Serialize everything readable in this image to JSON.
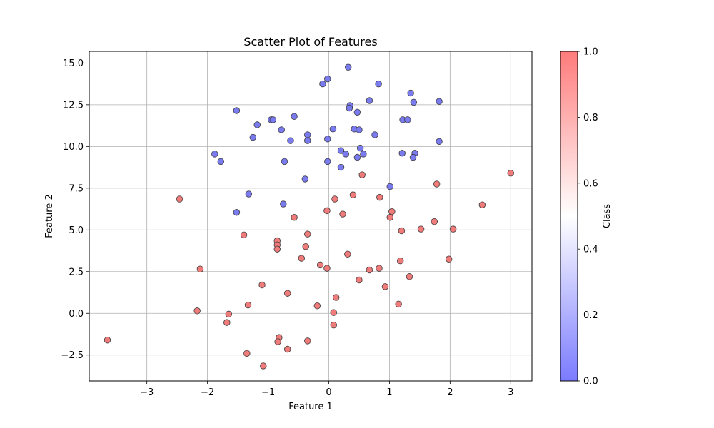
{
  "chart_data": {
    "type": "scatter",
    "title": "Scatter Plot of Features",
    "xlabel": "Feature 1",
    "ylabel": "Feature 2",
    "xlim": [
      -3.95,
      3.35
    ],
    "ylim": [
      -4.05,
      15.7
    ],
    "x_ticks": [
      -3,
      -2,
      -1,
      0,
      1,
      2,
      3
    ],
    "x_tick_labels": [
      "−3",
      "−2",
      "−1",
      "0",
      "1",
      "2",
      "3"
    ],
    "y_ticks": [
      -2.5,
      0,
      2.5,
      5,
      7.5,
      10,
      12.5,
      15
    ],
    "y_tick_labels": [
      "−2.5",
      "0.0",
      "2.5",
      "5.0",
      "7.5",
      "10.0",
      "12.5",
      "15.0"
    ],
    "grid": true,
    "colorbar": {
      "label": "Class",
      "range": [
        0,
        1
      ],
      "ticks": [
        0,
        0.2,
        0.4,
        0.6,
        0.8,
        1.0
      ],
      "tick_labels": [
        "0.0",
        "0.2",
        "0.4",
        "0.6",
        "0.8",
        "1.0"
      ],
      "color_low": "#7b7bff",
      "color_mid": "#ffffff",
      "color_high": "#ff7b7b"
    },
    "series": [
      {
        "class": 0,
        "color": "#7b7bf0",
        "points": [
          [
            0.32,
            14.75
          ],
          [
            -0.02,
            14.05
          ],
          [
            -0.1,
            13.75
          ],
          [
            0.82,
            13.75
          ],
          [
            1.35,
            13.2
          ],
          [
            0.67,
            12.75
          ],
          [
            1.82,
            12.7
          ],
          [
            1.4,
            12.65
          ],
          [
            0.35,
            12.45
          ],
          [
            0.34,
            12.3
          ],
          [
            -1.52,
            12.15
          ],
          [
            0.47,
            12.05
          ],
          [
            -0.57,
            11.8
          ],
          [
            -0.95,
            11.6
          ],
          [
            -0.92,
            11.6
          ],
          [
            1.22,
            11.6
          ],
          [
            1.3,
            11.6
          ],
          [
            -1.18,
            11.3
          ],
          [
            0.07,
            11.05
          ],
          [
            0.42,
            11.05
          ],
          [
            0.5,
            11.0
          ],
          [
            -0.78,
            11.0
          ],
          [
            -0.35,
            10.7
          ],
          [
            0.76,
            10.7
          ],
          [
            -1.25,
            10.55
          ],
          [
            -0.02,
            10.45
          ],
          [
            -0.63,
            10.35
          ],
          [
            -0.35,
            10.35
          ],
          [
            1.82,
            10.3
          ],
          [
            0.52,
            9.9
          ],
          [
            0.2,
            9.75
          ],
          [
            0.28,
            9.55
          ],
          [
            0.57,
            9.55
          ],
          [
            1.42,
            9.6
          ],
          [
            1.21,
            9.6
          ],
          [
            1.39,
            9.35
          ],
          [
            0.47,
            9.35
          ],
          [
            -1.88,
            9.55
          ],
          [
            -1.78,
            9.1
          ],
          [
            -0.73,
            9.1
          ],
          [
            -0.02,
            9.1
          ],
          [
            0.2,
            8.75
          ],
          [
            -0.39,
            8.05
          ],
          [
            1.01,
            7.6
          ],
          [
            -1.32,
            7.15
          ],
          [
            -0.75,
            6.55
          ],
          [
            -1.52,
            6.05
          ]
        ]
      },
      {
        "class": 1,
        "color": "#f07b7b",
        "points": [
          [
            3.0,
            8.4
          ],
          [
            0.55,
            8.3
          ],
          [
            1.78,
            7.75
          ],
          [
            0.4,
            7.1
          ],
          [
            0.84,
            6.95
          ],
          [
            -2.46,
            6.85
          ],
          [
            0.1,
            6.85
          ],
          [
            2.53,
            6.5
          ],
          [
            1.04,
            6.1
          ],
          [
            -0.03,
            6.15
          ],
          [
            0.23,
            5.95
          ],
          [
            1.01,
            5.75
          ],
          [
            -0.57,
            5.75
          ],
          [
            1.74,
            5.5
          ],
          [
            1.52,
            5.05
          ],
          [
            2.05,
            5.05
          ],
          [
            1.2,
            4.95
          ],
          [
            -1.4,
            4.7
          ],
          [
            -0.35,
            4.75
          ],
          [
            -0.85,
            4.35
          ],
          [
            -0.85,
            4.1
          ],
          [
            -0.85,
            3.85
          ],
          [
            -0.38,
            4.0
          ],
          [
            0.31,
            3.55
          ],
          [
            -0.45,
            3.3
          ],
          [
            1.18,
            3.15
          ],
          [
            1.98,
            3.25
          ],
          [
            -0.14,
            2.9
          ],
          [
            -0.03,
            2.7
          ],
          [
            0.67,
            2.6
          ],
          [
            0.83,
            2.7
          ],
          [
            -2.12,
            2.65
          ],
          [
            1.33,
            2.2
          ],
          [
            0.5,
            2.0
          ],
          [
            -1.1,
            1.7
          ],
          [
            0.93,
            1.6
          ],
          [
            -0.68,
            1.2
          ],
          [
            0.12,
            0.95
          ],
          [
            1.15,
            0.55
          ],
          [
            -1.33,
            0.5
          ],
          [
            -0.19,
            0.45
          ],
          [
            -2.17,
            0.15
          ],
          [
            0.08,
            0.05
          ],
          [
            -1.65,
            -0.05
          ],
          [
            -1.68,
            -0.55
          ],
          [
            0.08,
            -0.7
          ],
          [
            -0.82,
            -1.45
          ],
          [
            -3.65,
            -1.6
          ],
          [
            -0.84,
            -1.7
          ],
          [
            -0.35,
            -1.65
          ],
          [
            -0.68,
            -2.15
          ],
          [
            -1.35,
            -2.4
          ],
          [
            -1.08,
            -3.15
          ]
        ]
      }
    ]
  }
}
